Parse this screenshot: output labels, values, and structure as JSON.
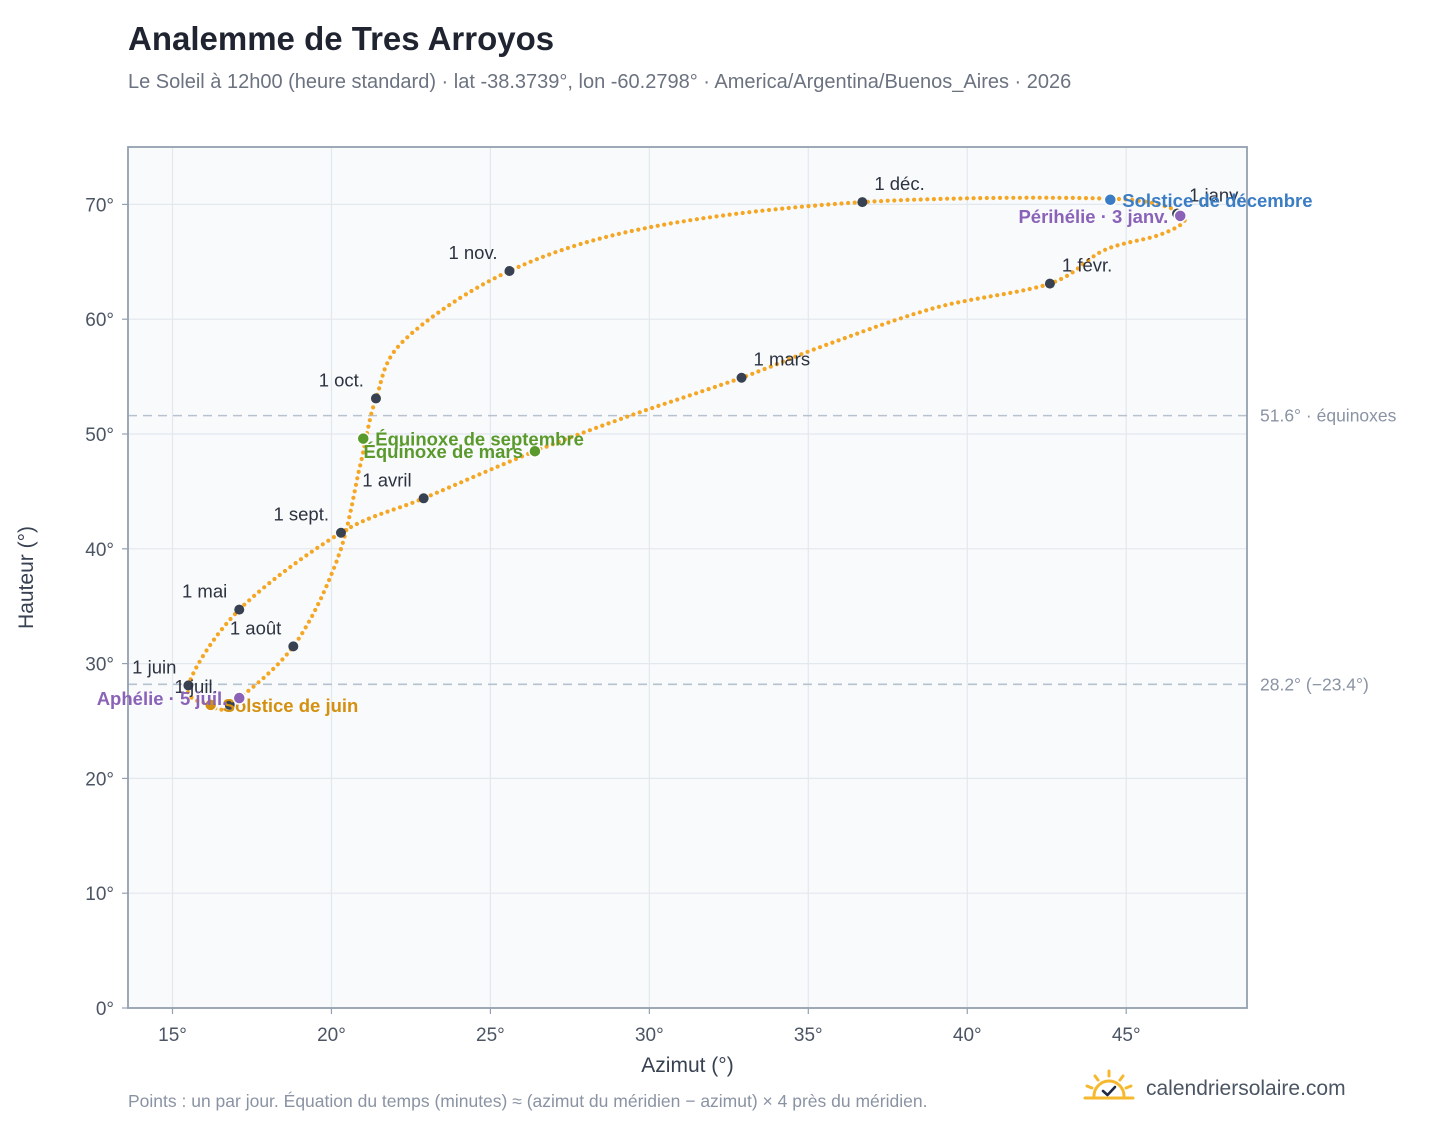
{
  "header": {
    "title": "Analemme de Tres Arroyos",
    "subtitle": "Le Soleil à 12h00 (heure standard) · lat -38.3739°, lon -60.2798° · America/Argentina/Buenos_Aires · 2026"
  },
  "footer": {
    "note": "Points : un par jour. Équation du temps (minutes) ≈ (azimut du méridien − azimut) × 4 près du méridien.",
    "brand": "calendriersolaire.com",
    "brand_icon": "sun-check-icon"
  },
  "colors": {
    "curve": "#f5a623",
    "month_marker": "#374151",
    "december_solstice": "#3b7dc4",
    "june_solstice": "#d4900f",
    "equinox": "#5a9a2c",
    "apsis": "#8a63b8",
    "reference_line": "#b6c3cf",
    "plot_background": "#f8fafc",
    "grid": "#e3e8ee",
    "frame": "#94a0b0"
  },
  "chart_data": {
    "type": "scatter",
    "xlabel": "Azimut (°)",
    "ylabel": "Hauteur (°)",
    "xlim": [
      13.6,
      48.8
    ],
    "ylim": [
      0,
      75
    ],
    "xticks": [
      15,
      20,
      25,
      30,
      35,
      40,
      45
    ],
    "yticks": [
      0,
      10,
      20,
      30,
      40,
      50,
      60,
      70
    ],
    "tick_suffix": "°",
    "grid": true,
    "analemma_path": [
      [
        46.7,
        69.0
      ],
      [
        46.8,
        68.4
      ],
      [
        46.0,
        67.3
      ],
      [
        44.3,
        66.0
      ],
      [
        42.6,
        63.1
      ],
      [
        39.0,
        61.0
      ],
      [
        35.5,
        57.7
      ],
      [
        32.9,
        54.9
      ],
      [
        29.5,
        51.7
      ],
      [
        26.4,
        48.5
      ],
      [
        22.9,
        44.4
      ],
      [
        20.3,
        41.4
      ],
      [
        17.1,
        34.7
      ],
      [
        15.5,
        28.1
      ],
      [
        16.2,
        26.4
      ],
      [
        16.8,
        26.4
      ],
      [
        18.8,
        31.5
      ],
      [
        20.2,
        39.2
      ],
      [
        20.9,
        47.2
      ],
      [
        21.4,
        53.1
      ],
      [
        22.3,
        58.2
      ],
      [
        25.6,
        64.2
      ],
      [
        30.0,
        68.0
      ],
      [
        36.7,
        70.2
      ],
      [
        44.5,
        70.5
      ],
      [
        46.8,
        69.3
      ]
    ],
    "month_markers": [
      {
        "label": "1 janv.",
        "x": 46.6,
        "y": 69.2,
        "anchor": "right"
      },
      {
        "label": "1 févr.",
        "x": 42.6,
        "y": 63.1,
        "anchor": "right"
      },
      {
        "label": "1 mars",
        "x": 32.9,
        "y": 54.9,
        "anchor": "right"
      },
      {
        "label": "1 avril",
        "x": 22.9,
        "y": 44.4,
        "anchor": "left"
      },
      {
        "label": "1 mai",
        "x": 17.1,
        "y": 34.7,
        "anchor": "left"
      },
      {
        "label": "1 juin",
        "x": 15.5,
        "y": 28.1,
        "anchor": "left"
      },
      {
        "label": "1 juil.",
        "x": 16.8,
        "y": 26.4,
        "anchor": "left"
      },
      {
        "label": "1 août",
        "x": 18.8,
        "y": 31.5,
        "anchor": "left"
      },
      {
        "label": "1 sept.",
        "x": 20.3,
        "y": 41.4,
        "anchor": "left"
      },
      {
        "label": "1 oct.",
        "x": 21.4,
        "y": 53.1,
        "anchor": "left"
      },
      {
        "label": "1 nov.",
        "x": 25.6,
        "y": 64.2,
        "anchor": "left"
      },
      {
        "label": "1 déc.",
        "x": 36.7,
        "y": 70.2,
        "anchor": "right"
      }
    ],
    "events": [
      {
        "label": "Solstice de décembre",
        "x": 44.5,
        "y": 70.4,
        "color": "#3b7dc4",
        "anchor": "right"
      },
      {
        "label": "Périhélie · 3 janv.",
        "x": 46.7,
        "y": 69.0,
        "color": "#8a63b8",
        "anchor": "left"
      },
      {
        "label": "Équinoxe de mars",
        "x": 26.4,
        "y": 48.5,
        "color": "#5a9a2c",
        "anchor": "left"
      },
      {
        "label": "Équinoxe de septembre",
        "x": 21.0,
        "y": 49.6,
        "color": "#5a9a2c",
        "anchor": "right"
      },
      {
        "label": "Solstice de juin",
        "x": 16.2,
        "y": 26.4,
        "color": "#d4900f",
        "anchor": "right"
      },
      {
        "label": "Aphélie · 5 juil.",
        "x": 17.1,
        "y": 27.0,
        "color": "#8a63b8",
        "anchor": "left"
      }
    ],
    "reference_lines": [
      {
        "y": 51.6,
        "label": "51.6° · équinoxes"
      },
      {
        "y": 28.2,
        "label": "28.2° (−23.4°)"
      }
    ]
  }
}
